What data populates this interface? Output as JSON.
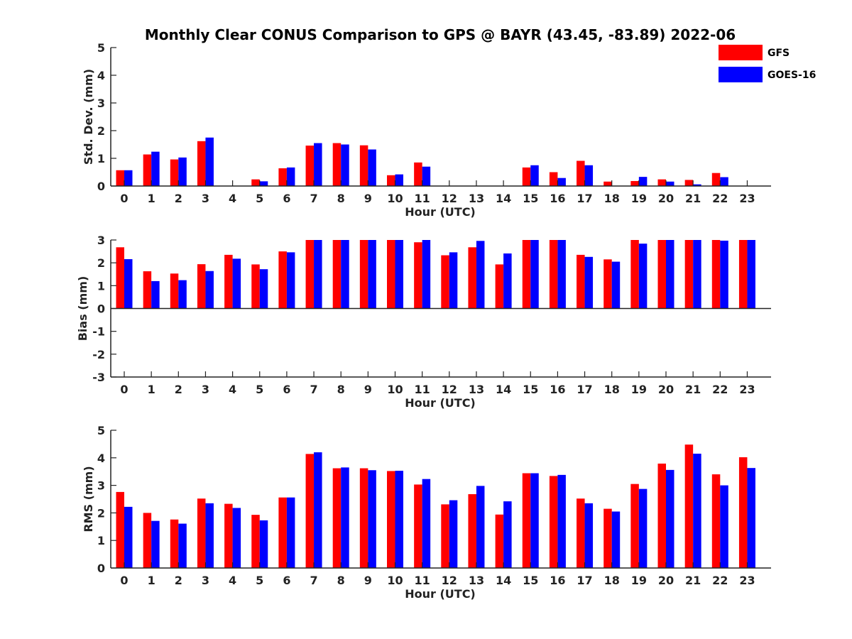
{
  "chart_data": {
    "type": "bar",
    "title": "Monthly Clear CONUS Comparison to GPS @ BAYR (43.45, -83.89) 2022-06",
    "legend": {
      "placement": "top-right",
      "entries": [
        "GFS",
        "GOES-16"
      ]
    },
    "colors": {
      "GFS": "#ff0000",
      "GOES-16": "#0000ff"
    },
    "categories": [
      "0",
      "1",
      "2",
      "3",
      "4",
      "5",
      "6",
      "7",
      "8",
      "9",
      "10",
      "11",
      "12",
      "13",
      "14",
      "15",
      "16",
      "17",
      "18",
      "19",
      "20",
      "21",
      "22",
      "23"
    ],
    "panels": [
      {
        "xlabel": "Hour (UTC)",
        "ylabel": "Std. Dev. (mm)",
        "ylim": [
          0,
          5
        ],
        "yticks": [
          "0",
          "1",
          "2",
          "3",
          "4",
          "5"
        ],
        "grid": false,
        "series": [
          {
            "name": "GFS",
            "values": [
              0.57,
              1.14,
              0.96,
              1.62,
              0,
              0.24,
              0.64,
              1.46,
              1.55,
              1.47,
              0.39,
              0.85,
              0,
              0,
              0,
              0.67,
              0.5,
              0.91,
              0.16,
              0.18,
              0.24,
              0.22,
              0.47,
              0
            ]
          },
          {
            "name": "GOES-16",
            "values": [
              0.57,
              1.24,
              1.03,
              1.75,
              0,
              0.17,
              0.67,
              1.55,
              1.5,
              1.32,
              0.42,
              0.7,
              0,
              0,
              0,
              0.75,
              0.29,
              0.75,
              0,
              0.33,
              0.16,
              0.06,
              0.32,
              0.01
            ]
          }
        ]
      },
      {
        "xlabel": "Hour (UTC)",
        "ylabel": "Bias (mm)",
        "ylim": [
          -3,
          3
        ],
        "yticks": [
          "-3",
          "-2",
          "-1",
          "0",
          "1",
          "2",
          "3"
        ],
        "grid": false,
        "series": [
          {
            "name": "GFS",
            "values": [
              2.68,
              1.63,
              1.53,
              1.94,
              2.35,
              1.93,
              2.5,
              3,
              3,
              3,
              3,
              2.9,
              2.33,
              2.68,
              1.93,
              3,
              3,
              2.35,
              2.15,
              3,
              3,
              3,
              3,
              3
            ]
          },
          {
            "name": "GOES-16",
            "values": [
              2.16,
              1.2,
              1.24,
              1.64,
              2.18,
              1.72,
              2.46,
              3,
              3,
              3,
              3,
              3,
              2.46,
              2.96,
              2.41,
              3,
              3,
              2.26,
              2.05,
              2.84,
              3,
              3,
              2.97,
              3
            ]
          }
        ]
      },
      {
        "xlabel": "Hour (UTC)",
        "ylabel": "RMS (mm)",
        "ylim": [
          0,
          5
        ],
        "yticks": [
          "0",
          "1",
          "2",
          "3",
          "4",
          "5"
        ],
        "grid": false,
        "series": [
          {
            "name": "GFS",
            "values": [
              2.76,
              2.0,
              1.76,
              2.52,
              2.33,
              1.93,
              2.56,
              4.14,
              3.62,
              3.62,
              3.52,
              3.03,
              2.31,
              2.68,
              1.94,
              3.44,
              3.34,
              2.52,
              2.15,
              3.05,
              3.79,
              4.48,
              3.4,
              4.02
            ]
          },
          {
            "name": "GOES-16",
            "values": [
              2.22,
              1.71,
              1.61,
              2.35,
              2.18,
              1.73,
              2.56,
              4.2,
              3.65,
              3.55,
              3.53,
              3.23,
              2.46,
              2.98,
              2.42,
              3.44,
              3.38,
              2.35,
              2.05,
              2.87,
              3.56,
              4.15,
              3.0,
              3.63
            ]
          }
        ]
      }
    ]
  }
}
